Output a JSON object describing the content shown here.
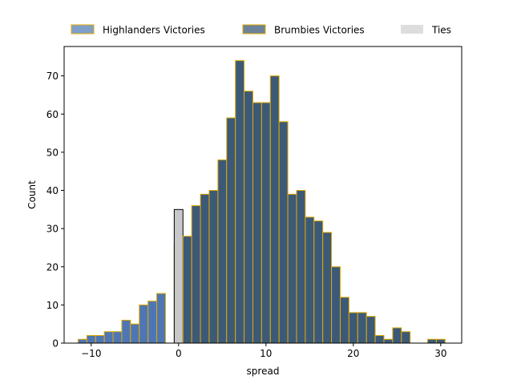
{
  "chart_data": {
    "type": "bar",
    "xlabel": "spread",
    "ylabel": "Count",
    "xlim": [
      -13.1,
      32.4
    ],
    "ylim": [
      0,
      77.7
    ],
    "x_ticks": [
      -10,
      0,
      10,
      20,
      30
    ],
    "y_ticks": [
      0,
      10,
      20,
      30,
      40,
      50,
      60,
      70
    ],
    "x_tick_labels": [
      "−10",
      "0",
      "10",
      "20",
      "30"
    ],
    "y_tick_labels": [
      "0",
      "10",
      "20",
      "30",
      "40",
      "50",
      "60",
      "70"
    ],
    "bin_width": 1,
    "legend_position": "top, outside plot, horizontal",
    "series": [
      {
        "name": "Highlanders Victories",
        "color": "#4f76b4",
        "legend_color": "#7f9fc8",
        "edgecolor": "#e0a800",
        "bins_left": [
          -11.5,
          -10.5,
          -9.5,
          -8.5,
          -7.5,
          -6.5,
          -5.5,
          -4.5,
          -3.5,
          -2.5,
          -1.5,
          -0.5
        ],
        "values": [
          1,
          2,
          2,
          3,
          3,
          6,
          5,
          10,
          11,
          13,
          0,
          26
        ]
      },
      {
        "name": "Ties",
        "color": "#c8c8c8",
        "legend_color": "#dddddd",
        "edgecolor": "#000000",
        "bins_left": [
          -0.5
        ],
        "values": [
          35
        ]
      },
      {
        "name": "Brumbies Victories",
        "color": "#3c5a78",
        "legend_color": "#6d8399",
        "edgecolor": "#e0a800",
        "bins_left": [
          0.5,
          1.5,
          2.5,
          3.5,
          4.5,
          5.5,
          6.5,
          7.5,
          8.5,
          9.5,
          10.5,
          11.5,
          12.5,
          13.5,
          14.5,
          15.5,
          16.5,
          17.5,
          18.5,
          19.5,
          20.5,
          21.5,
          22.5,
          23.5,
          24.5,
          25.5,
          26.5,
          27.5,
          28.5,
          29.5
        ],
        "values": [
          28,
          36,
          39,
          40,
          48,
          59,
          74,
          66,
          63,
          63,
          70,
          58,
          39,
          40,
          33,
          32,
          29,
          20,
          12,
          8,
          8,
          7,
          2,
          1,
          4,
          3,
          0,
          0,
          1,
          1
        ]
      }
    ]
  }
}
